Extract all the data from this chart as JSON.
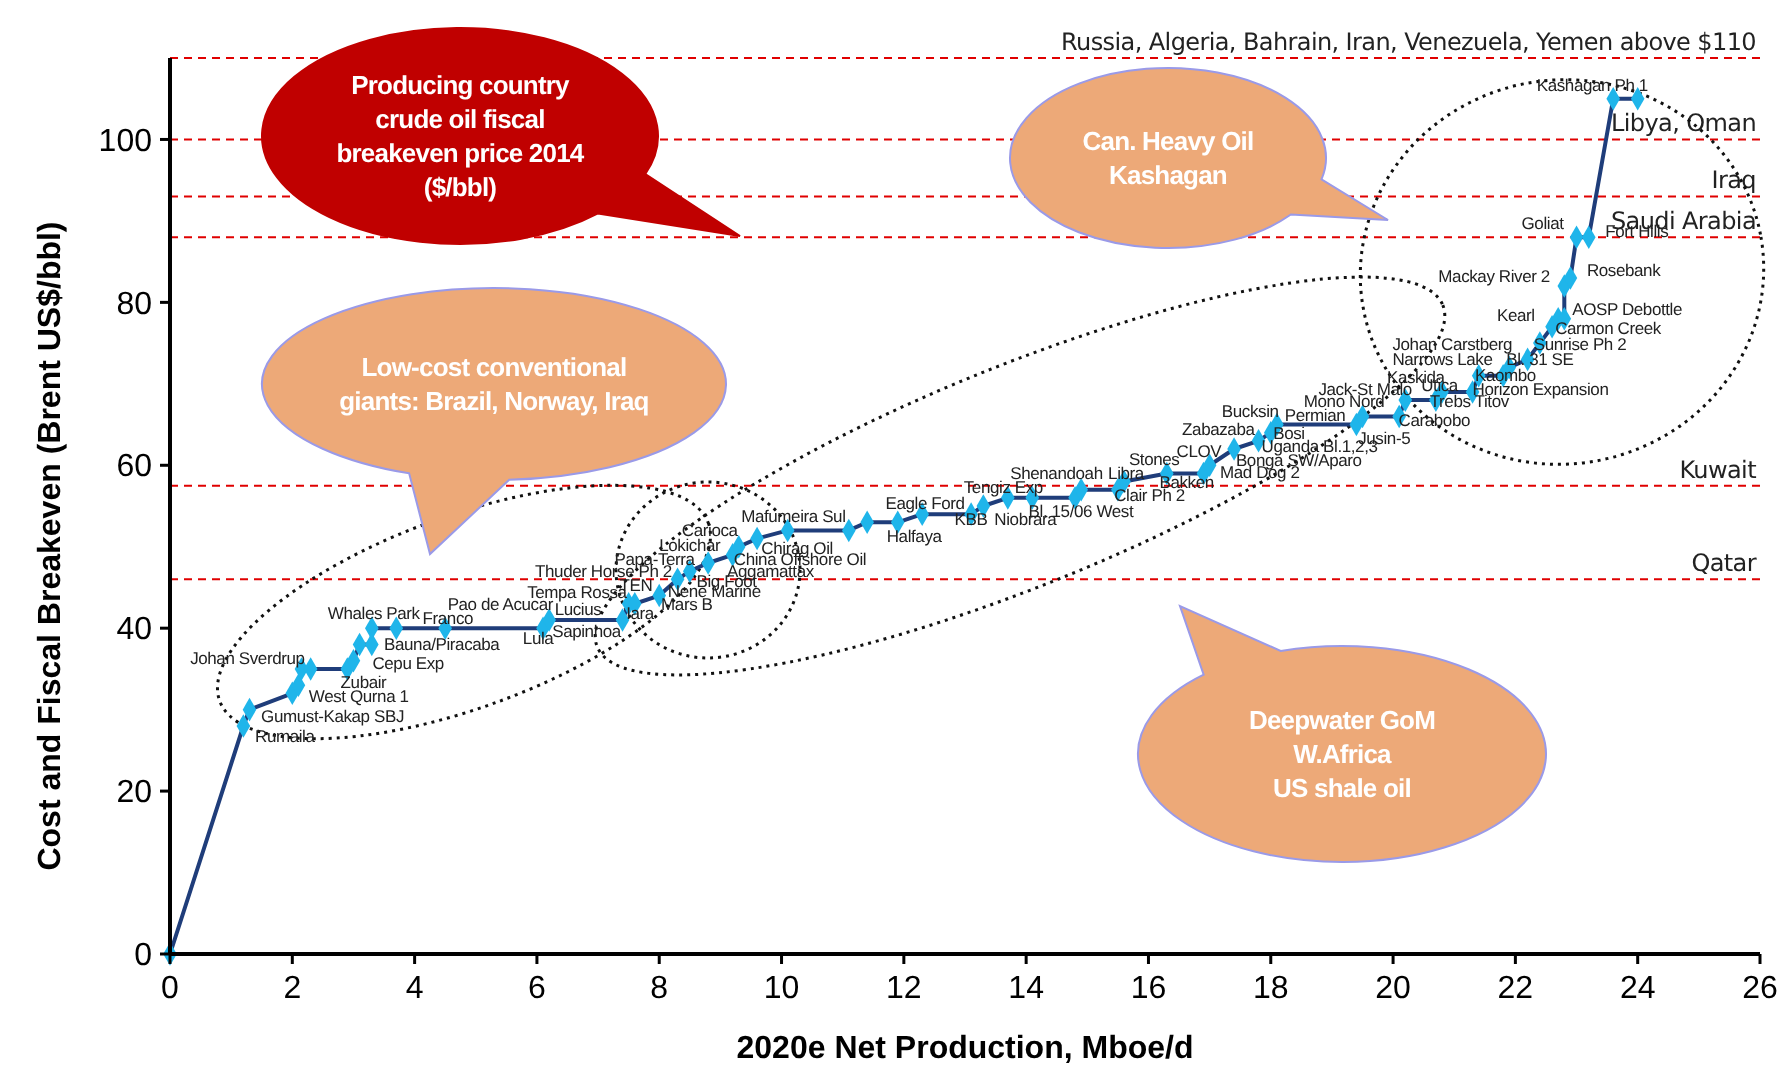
{
  "chart_data": {
    "type": "line",
    "xlabel": "2020e Net Production, Mboe/d",
    "ylabel": "Cost and Fiscal Breakeven (Brent US$/bbl)",
    "xlim": [
      0,
      26
    ],
    "xticks": [
      0,
      2,
      4,
      6,
      8,
      10,
      12,
      14,
      16,
      18,
      20,
      22,
      24,
      26
    ],
    "ylim": [
      0,
      110
    ],
    "yticks": [
      0,
      20,
      40,
      60,
      80,
      100
    ],
    "grid": false,
    "line_style": "solid",
    "series": [
      {
        "color": "#1f3d7a",
        "marker": "none",
        "x": [
          0,
          1.2,
          1.3,
          2.0,
          2.1,
          2.15,
          2.3,
          2.9,
          3.0,
          3.1,
          3.3,
          3.3,
          3.7,
          4.5,
          6.1,
          6.2,
          7.4,
          7.5,
          7.6,
          8.0,
          8.3,
          8.5,
          8.8,
          9.2,
          9.3,
          9.6,
          10.1,
          11.1,
          11.4,
          11.9,
          12.3,
          13.1,
          13.3,
          13.7,
          14.1,
          14.8,
          14.9,
          15.5,
          15.6,
          16.3,
          16.9,
          17.0,
          17.4,
          17.8,
          18.0,
          18.1,
          19.4,
          19.5,
          20.1,
          20.2,
          20.7,
          20.8,
          21.3,
          21.4,
          21.8,
          21.9,
          22.2,
          22.4,
          22.6,
          22.7,
          22.8,
          22.8,
          22.9,
          23.0,
          23.2,
          23.6,
          24.0
        ],
        "values": [
          0,
          28,
          30,
          32,
          33,
          35,
          35,
          35,
          36,
          38,
          38,
          40,
          40,
          40,
          40,
          41,
          41,
          43,
          43,
          44,
          46,
          47,
          48,
          49,
          50,
          51,
          52,
          52,
          53,
          53,
          54,
          54,
          55,
          56,
          56,
          56,
          57,
          57,
          58,
          59,
          59,
          60,
          62,
          63,
          64,
          65,
          65,
          66,
          66,
          68,
          68,
          69,
          69,
          71,
          71,
          72,
          73,
          75,
          77,
          78,
          78,
          82,
          83,
          88,
          88,
          105,
          105
        ]
      },
      {
        "type": "scatter",
        "color": "#1fb5ea",
        "marker": "diamond",
        "x": [
          0,
          1.2,
          1.3,
          2.0,
          2.1,
          2.15,
          2.3,
          2.9,
          3.0,
          3.1,
          3.3,
          3.3,
          3.7,
          4.5,
          6.1,
          6.2,
          7.4,
          7.5,
          7.6,
          8.0,
          8.3,
          8.5,
          8.8,
          9.2,
          9.3,
          9.6,
          10.1,
          11.1,
          11.4,
          11.9,
          12.3,
          13.1,
          13.3,
          13.7,
          14.1,
          14.8,
          14.9,
          15.5,
          15.6,
          16.3,
          16.9,
          17.0,
          17.4,
          17.8,
          18.0,
          18.1,
          19.4,
          19.5,
          20.1,
          20.2,
          20.7,
          20.8,
          21.3,
          21.4,
          21.8,
          21.9,
          22.2,
          22.4,
          22.6,
          22.7,
          22.8,
          22.8,
          22.9,
          23.0,
          23.2,
          23.6,
          24.0
        ],
        "values": [
          0,
          28,
          30,
          32,
          33,
          35,
          35,
          35,
          36,
          38,
          38,
          40,
          40,
          40,
          40,
          41,
          41,
          43,
          43,
          44,
          46,
          47,
          48,
          49,
          50,
          51,
          52,
          52,
          53,
          53,
          54,
          54,
          55,
          56,
          56,
          56,
          57,
          57,
          58,
          59,
          59,
          60,
          62,
          63,
          64,
          65,
          65,
          66,
          66,
          68,
          68,
          69,
          69,
          71,
          71,
          72,
          73,
          75,
          77,
          78,
          78,
          82,
          83,
          88,
          88,
          105,
          105
        ]
      }
    ],
    "ref_lines": [
      {
        "axis": "y",
        "value": 46,
        "label": "Qatar",
        "color": "#e00000",
        "line_style": "dashed"
      },
      {
        "axis": "y",
        "value": 57.5,
        "label": "Kuwait",
        "color": "#e00000",
        "line_style": "dashed"
      },
      {
        "axis": "y",
        "value": 88,
        "label": "Saudi Arabia",
        "color": "#e00000",
        "line_style": "dashed"
      },
      {
        "axis": "y",
        "value": 93,
        "label": "Iraq",
        "color": "#e00000",
        "line_style": "dashed"
      },
      {
        "axis": "y",
        "value": 100,
        "label": "Libya, Oman",
        "color": "#e00000",
        "line_style": "dashed"
      },
      {
        "axis": "y",
        "value": 110,
        "label": "Russia, Algeria, Bahrain, Iran, Venezuela, Yemen above $110",
        "color": "#e00000",
        "line_style": "dashed"
      }
    ],
    "annotations": [
      "Producing country\ncrude oil fiscal\nbreakeven price 2014\n($/bbl)",
      "Low-cost conventional\ngiants: Brazil, Norway, Iraq",
      "Can. Heavy Oil\nKashagan",
      "Deepwater GoM\nW.Africa\nUS shale oil",
      "Rumaila",
      "Gumust-Kakap SBJ",
      "West Qurna 1",
      "Zubair",
      "Johan Sverdrup",
      "Cepu Exp",
      "Bauna/Piracaba",
      "Whales Park",
      "Franco",
      "Pao de Acucar",
      "Lula",
      "Sapinhoa",
      "Lucius",
      "Tempa Rossa",
      "Thuder Horse Ph 2",
      "Iara",
      "Mars B",
      "TEN",
      "Papa-Terra",
      "Nene Marine",
      "Big Foot",
      "Lokichar",
      "Carioca",
      "Aggamattax",
      "China Offshore Oil",
      "Chirag Oil",
      "Mafumeira Sul",
      "Halfaya",
      "Eagle Ford",
      "KBB",
      "Tengiz Exp",
      "Niobrara",
      "Bl. 15/06 West",
      "Shenandoah",
      "Libra",
      "Clair Ph 2",
      "Stones",
      "Bakken",
      "CLOV",
      "Mad Dog 2",
      "Bonga SW/Aparo",
      "Uganda Bl.1,2,3",
      "Zabazaba",
      "Bosi",
      "Bucksin",
      "Permian",
      "Mono Nord",
      "Jack-St Malo",
      "Jusin-5",
      "Carabobo",
      "Kaskida",
      "Narrows Lake",
      "Johan Carstberg",
      "Utica",
      "Horizon Expansion",
      "Trebs Titov",
      "Kaombo",
      "Bl. 31 SE",
      "Sunrise Ph 2",
      "Carmon Creek",
      "Kearl",
      "AOSP Debottle",
      "Mackay River 2",
      "Rosebank",
      "Goliat",
      "Fort Hills",
      "Kashagan Ph 1"
    ]
  }
}
